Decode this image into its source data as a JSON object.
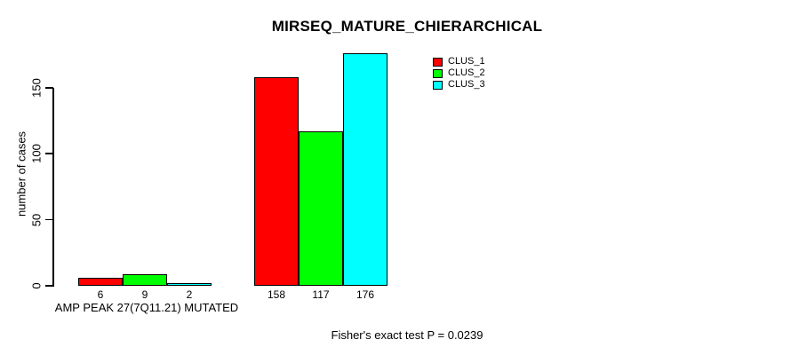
{
  "chart_data": {
    "type": "bar",
    "title": "MIRSEQ_MATURE_CHIERARCHICAL",
    "ylabel": "number of cases",
    "xlabel": "",
    "categories": [
      "AMP PEAK 27(7Q11.21) MUTATED",
      ""
    ],
    "series": [
      {
        "name": "CLUS_1",
        "color": "#FF0000",
        "values": [
          6,
          158
        ]
      },
      {
        "name": "CLUS_2",
        "color": "#00FF00",
        "values": [
          9,
          117
        ]
      },
      {
        "name": "CLUS_3",
        "color": "#00FFFF",
        "values": [
          2,
          176
        ]
      }
    ],
    "yticks": [
      0,
      50,
      100,
      150
    ],
    "ylim": [
      0,
      176
    ],
    "grid": false,
    "legend_position": "top-right",
    "bar_border_color": "#000000",
    "annotation": "Fisher's exact test P = 0.0239"
  }
}
